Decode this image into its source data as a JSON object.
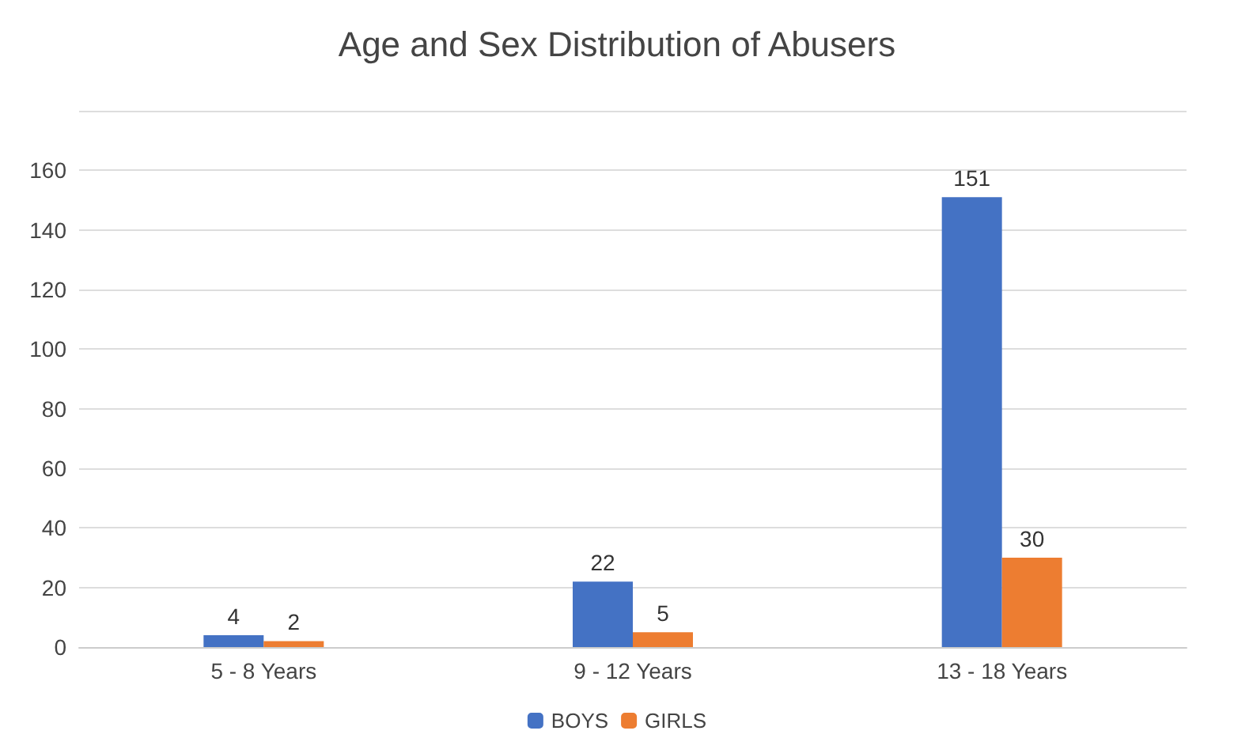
{
  "chart_data": {
    "type": "bar",
    "title": "Age and Sex Distribution of Abusers",
    "categories": [
      "5 - 8 Years",
      "9 - 12 Years",
      "13 - 18 Years"
    ],
    "series": [
      {
        "name": "BOYS",
        "color": "#4472c4",
        "values": [
          4,
          22,
          151
        ]
      },
      {
        "name": "GIRLS",
        "color": "#ed7d31",
        "values": [
          2,
          5,
          30
        ]
      }
    ],
    "ylim": [
      0,
      180
    ],
    "yticks": [
      0,
      20,
      40,
      60,
      80,
      100,
      120,
      140,
      160,
      {
        "value": 180,
        "label": null
      }
    ],
    "grid": "y",
    "legend": "bottom",
    "data_labels": true
  }
}
